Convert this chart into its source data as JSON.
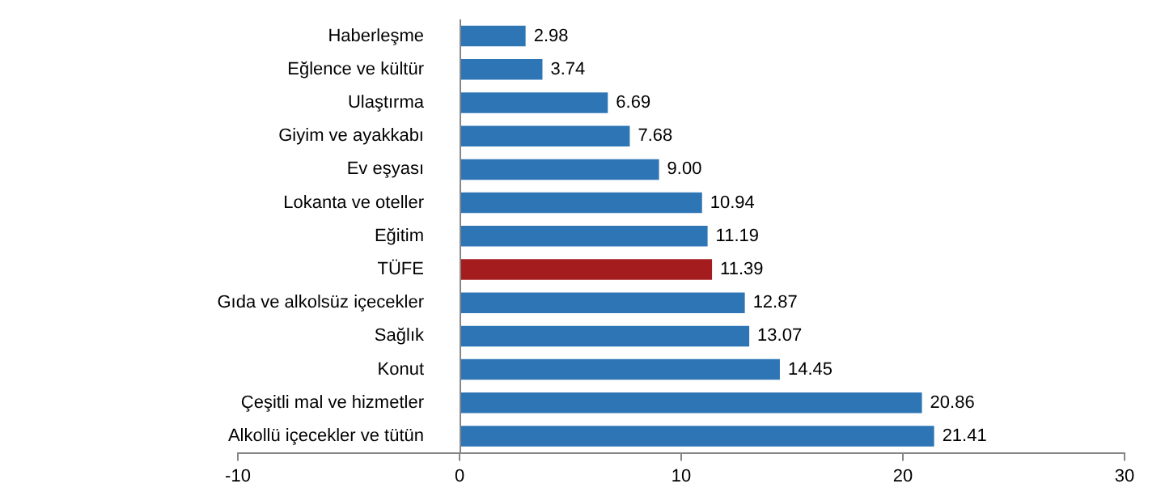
{
  "chart_data": {
    "type": "bar",
    "orientation": "horizontal",
    "categories": [
      "Haberleşme",
      "Eğlence ve kültür",
      "Ulaştırma",
      "Giyim ve ayakkabı",
      "Ev eşyası",
      "Lokanta ve oteller",
      "Eğitim",
      "TÜFE",
      "Gıda ve alkolsüz içecekler",
      "Sağlık",
      "Konut",
      "Çeşitli mal ve hizmetler",
      "Alkollü içecekler ve tütün"
    ],
    "values": [
      2.98,
      3.74,
      6.69,
      7.68,
      9.0,
      10.94,
      11.19,
      11.39,
      12.87,
      13.07,
      14.45,
      20.86,
      21.41
    ],
    "value_labels": [
      "2.98",
      "3.74",
      "6.69",
      "7.68",
      "9.00",
      "10.94",
      "11.19",
      "11.39",
      "12.87",
      "13.07",
      "14.45",
      "20.86",
      "21.41"
    ],
    "colors": [
      "#2e75b6",
      "#2e75b6",
      "#2e75b6",
      "#2e75b6",
      "#2e75b6",
      "#2e75b6",
      "#2e75b6",
      "#a51c1f",
      "#2e75b6",
      "#2e75b6",
      "#2e75b6",
      "#2e75b6",
      "#2e75b6"
    ],
    "xlim": [
      -10,
      30
    ],
    "xticks": [
      -10,
      0,
      10,
      20,
      30
    ],
    "grid": false,
    "legend": false
  }
}
